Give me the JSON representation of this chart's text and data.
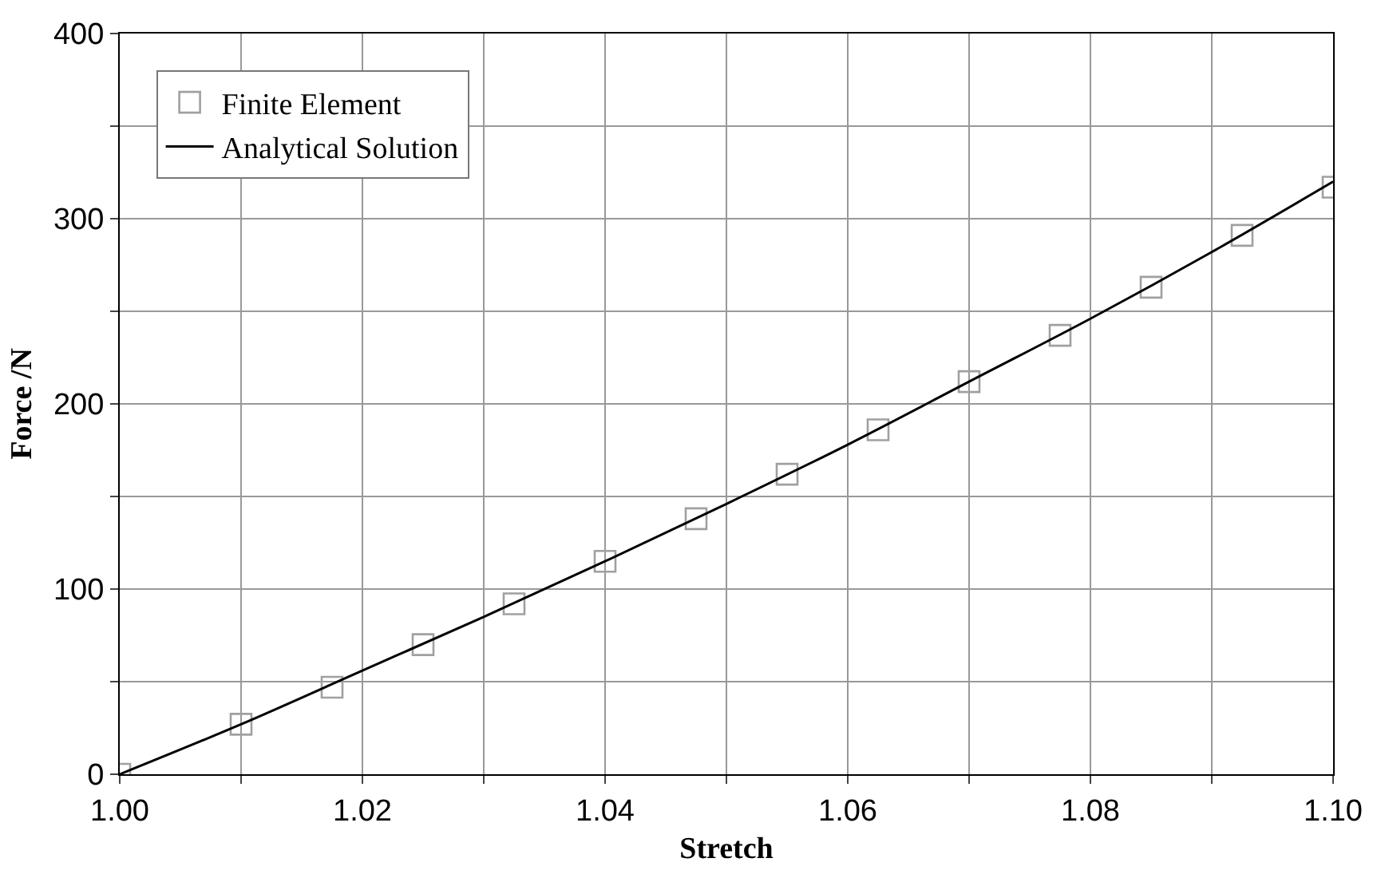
{
  "chart_data": {
    "type": "scatter",
    "xlabel": "Stretch",
    "ylabel": "Force /N",
    "series": [
      {
        "name": "Finite Element",
        "color": "#a0a0a0",
        "marker": "square",
        "x": [
          1.0,
          1.01,
          1.0175,
          1.025,
          1.0325,
          1.04,
          1.0475,
          1.055,
          1.0625,
          1.07,
          1.0775,
          1.085,
          1.0925,
          1.1
        ],
        "values": [
          0,
          27,
          47,
          70,
          92,
          115,
          138,
          162,
          186,
          212,
          237,
          263,
          291,
          317
        ]
      },
      {
        "name": "Analytical Solution",
        "type": "line",
        "color": "#000000",
        "marker": "none",
        "line_style": "solid",
        "x": [
          1.0,
          1.01,
          1.02,
          1.03,
          1.04,
          1.05,
          1.06,
          1.07,
          1.08,
          1.09,
          1.1
        ],
        "values": [
          0,
          27,
          56,
          85,
          115,
          146,
          178,
          212,
          246,
          282,
          320
        ]
      }
    ],
    "xlim": [
      1.0,
      1.1
    ],
    "xticks": [
      {
        "value": 1.0,
        "label": "1.00"
      },
      {
        "value": 1.01,
        "label": null
      },
      1.02,
      {
        "value": 1.03,
        "label": null
      },
      1.04,
      {
        "value": 1.05,
        "label": null
      },
      1.06,
      {
        "value": 1.07,
        "label": null
      },
      1.08,
      {
        "value": 1.09,
        "label": null
      },
      {
        "value": 1.1,
        "label": "1.10"
      }
    ],
    "ylim": [
      0,
      400
    ],
    "yticks": [
      0,
      {
        "value": 50,
        "label": null
      },
      100,
      {
        "value": 150,
        "label": null
      },
      200,
      {
        "value": 250,
        "label": null
      },
      300,
      {
        "value": 350,
        "label": null
      },
      400
    ],
    "grid": true,
    "legend": "top left"
  }
}
